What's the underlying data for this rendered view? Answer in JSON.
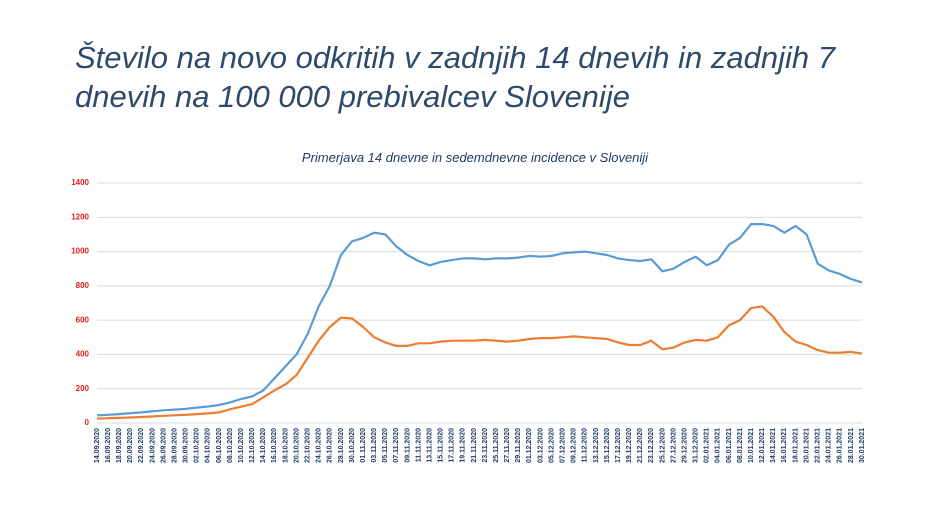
{
  "chart_data": {
    "type": "line",
    "title": "Število na novo odkritih v zadnjih 14 dnevih in zadnjih 7 dnevih na 100 000 prebivalcev Slovenije",
    "subtitle": "Primerjava 14 dnevne in sedemdnevne incidence v Sloveniji",
    "categories": [
      "14.09.2020",
      "16.09.2020",
      "18.09.2020",
      "20.09.2020",
      "22.09.2020",
      "24.09.2020",
      "26.09.2020",
      "28.09.2020",
      "30.09.2020",
      "02.10.2020",
      "04.10.2020",
      "06.10.2020",
      "08.10.2020",
      "10.10.2020",
      "12.10.2020",
      "14.10.2020",
      "16.10.2020",
      "18.10.2020",
      "20.10.2020",
      "22.10.2020",
      "24.10.2020",
      "26.10.2020",
      "28.10.2020",
      "30.10.2020",
      "01.11.2020",
      "03.11.2020",
      "05.11.2020",
      "07.11.2020",
      "09.11.2020",
      "11.11.2020",
      "13.11.2020",
      "15.11.2020",
      "17.11.2020",
      "19.11.2020",
      "21.11.2020",
      "23.11.2020",
      "25.11.2020",
      "27.11.2020",
      "29.11.2020",
      "01.12.2020",
      "03.12.2020",
      "05.12.2020",
      "07.12.2020",
      "09.12.2020",
      "11.12.2020",
      "13.12.2020",
      "15.12.2020",
      "17.12.2020",
      "19.12.2020",
      "21.12.2020",
      "23.12.2020",
      "25.12.2020",
      "27.12.2020",
      "29.12.2020",
      "31.12.2020",
      "02.01.2021",
      "04.01.2021",
      "06.01.2021",
      "08.01.2021",
      "10.01.2021",
      "12.01.2021",
      "14.01.2021",
      "16.01.2021",
      "18.01.2021",
      "20.01.2021",
      "22.01.2021",
      "24.01.2021",
      "26.01.2021",
      "28.01.2021",
      "30.01.2021"
    ],
    "series": [
      {
        "color": "#5b9bd5",
        "values": [
          45,
          48,
          52,
          57,
          62,
          68,
          74,
          78,
          82,
          90,
          96,
          105,
          120,
          140,
          155,
          190,
          260,
          330,
          400,
          520,
          680,
          800,
          980,
          1060,
          1080,
          1110,
          1100,
          1030,
          980,
          945,
          920,
          940,
          950,
          960,
          960,
          955,
          960,
          960,
          965,
          975,
          970,
          975,
          990,
          995,
          1000,
          990,
          980,
          960,
          950,
          945,
          955,
          885,
          900,
          940,
          970,
          920,
          950,
          1040,
          1080,
          1160,
          1160,
          1150,
          1110,
          1150,
          1100,
          930,
          890,
          870,
          840,
          820
        ]
      },
      {
        "color": "#ed7d31",
        "values": [
          25,
          28,
          30,
          32,
          35,
          38,
          42,
          45,
          48,
          52,
          56,
          62,
          80,
          95,
          110,
          150,
          190,
          225,
          280,
          380,
          480,
          560,
          615,
          610,
          560,
          500,
          470,
          450,
          450,
          465,
          465,
          475,
          480,
          480,
          480,
          485,
          480,
          475,
          480,
          490,
          495,
          495,
          500,
          505,
          500,
          495,
          490,
          470,
          455,
          455,
          480,
          430,
          440,
          470,
          485,
          480,
          500,
          570,
          600,
          670,
          680,
          620,
          530,
          475,
          455,
          425,
          410,
          410,
          415,
          405
        ]
      }
    ],
    "ylim": [
      0,
      1400
    ],
    "yticks": [
      0,
      200,
      400,
      600,
      800,
      1000,
      1200,
      1400
    ],
    "grid": true
  }
}
